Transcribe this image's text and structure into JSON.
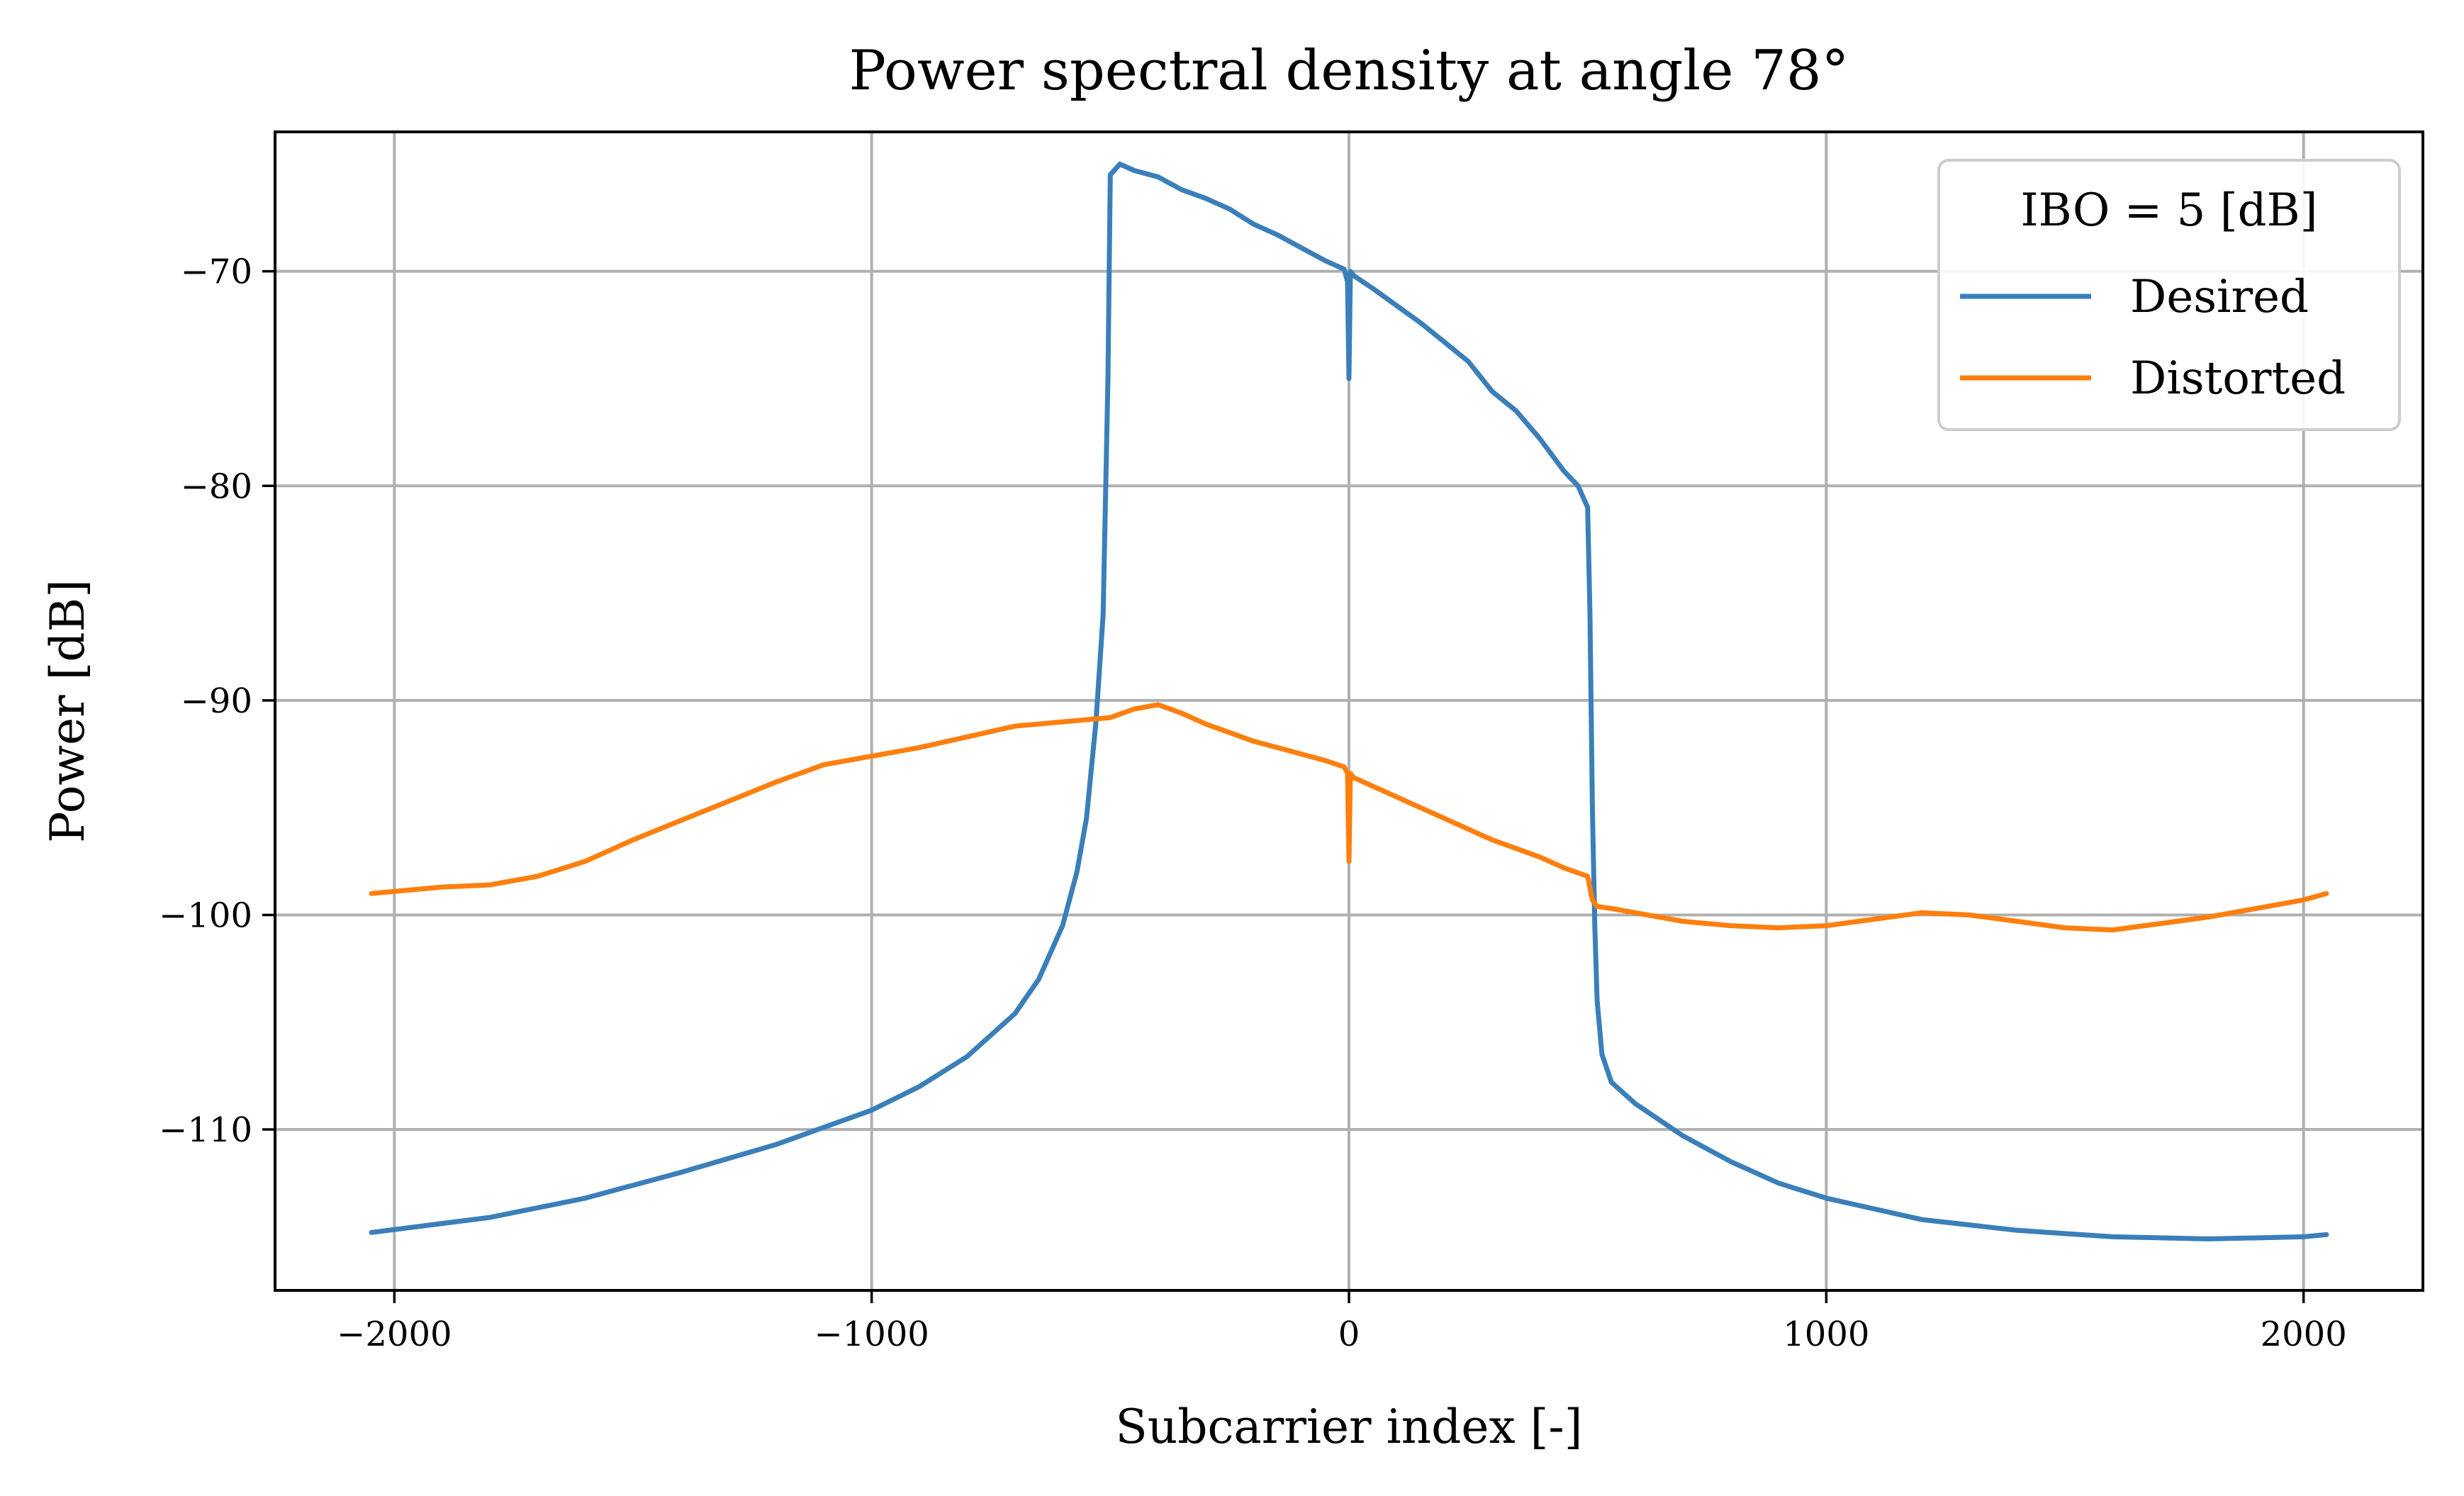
{
  "chart_data": {
    "type": "line",
    "title": "Power spectral density at angle 78°",
    "xlabel": "Subcarrier index [-]",
    "ylabel": "Power [dB]",
    "xlim": [
      -2250,
      2250
    ],
    "ylim": [
      -117.5,
      -63.5
    ],
    "xticks": [
      -2000,
      -1000,
      0,
      1000,
      2000
    ],
    "xtick_labels": [
      "−2000",
      "−1000",
      "0",
      "1000",
      "2000"
    ],
    "yticks": [
      -110,
      -100,
      -90,
      -80,
      -70
    ],
    "ytick_labels": [
      "−110",
      "−100",
      "−90",
      "−80",
      "−70"
    ],
    "grid": true,
    "legend": {
      "title": "IBO = 5 [dB]",
      "placement": "upper right"
    },
    "series": [
      {
        "name": "Desired",
        "color": "#3a7fba",
        "x": [
          -2048,
          -1800,
          -1600,
          -1400,
          -1200,
          -1000,
          -900,
          -800,
          -700,
          -650,
          -600,
          -570,
          -550,
          -530,
          -515,
          -505,
          -500,
          -480,
          -450,
          -400,
          -350,
          -300,
          -250,
          -200,
          -150,
          -100,
          -50,
          -10,
          -3,
          0,
          3,
          10,
          50,
          100,
          150,
          200,
          250,
          300,
          350,
          400,
          450,
          480,
          500,
          505,
          510,
          515,
          520,
          530,
          550,
          600,
          700,
          800,
          900,
          1000,
          1200,
          1400,
          1600,
          1800,
          2000,
          2048
        ],
        "y": [
          -114.8,
          -114.1,
          -113.2,
          -112.0,
          -110.7,
          -109.1,
          -108.0,
          -106.6,
          -104.6,
          -103.0,
          -100.5,
          -98.0,
          -95.5,
          -91.0,
          -86.0,
          -75.0,
          -65.5,
          -65.0,
          -65.3,
          -65.6,
          -66.2,
          -66.6,
          -67.1,
          -67.8,
          -68.3,
          -68.9,
          -69.5,
          -69.9,
          -70.5,
          -75.0,
          -70.0,
          -70.2,
          -70.8,
          -71.6,
          -72.4,
          -73.3,
          -74.2,
          -75.6,
          -76.5,
          -77.8,
          -79.3,
          -80.0,
          -81.0,
          -86.0,
          -95.0,
          -100.5,
          -104.0,
          -106.5,
          -107.8,
          -108.8,
          -110.3,
          -111.5,
          -112.5,
          -113.2,
          -114.2,
          -114.7,
          -115.0,
          -115.1,
          -115.0,
          -114.9
        ]
      },
      {
        "name": "Distorted",
        "color": "#ff7f0e",
        "x": [
          -2048,
          -1900,
          -1800,
          -1700,
          -1600,
          -1500,
          -1400,
          -1300,
          -1200,
          -1100,
          -1000,
          -900,
          -800,
          -700,
          -600,
          -500,
          -450,
          -400,
          -350,
          -300,
          -250,
          -200,
          -150,
          -100,
          -50,
          -10,
          -3,
          0,
          3,
          10,
          50,
          100,
          150,
          200,
          250,
          300,
          350,
          400,
          450,
          500,
          510,
          520,
          550,
          600,
          700,
          800,
          900,
          1000,
          1100,
          1200,
          1300,
          1400,
          1500,
          1600,
          1700,
          1800,
          1900,
          2000,
          2048
        ],
        "y": [
          -99.0,
          -98.7,
          -98.6,
          -98.2,
          -97.5,
          -96.5,
          -95.6,
          -94.7,
          -93.8,
          -93.0,
          -92.6,
          -92.2,
          -91.7,
          -91.2,
          -91.0,
          -90.8,
          -90.4,
          -90.2,
          -90.6,
          -91.1,
          -91.5,
          -91.9,
          -92.2,
          -92.5,
          -92.8,
          -93.1,
          -93.4,
          -97.5,
          -93.4,
          -93.6,
          -94.0,
          -94.5,
          -95.0,
          -95.5,
          -96.0,
          -96.5,
          -96.9,
          -97.3,
          -97.8,
          -98.2,
          -99.3,
          -99.6,
          -99.7,
          -99.9,
          -100.3,
          -100.5,
          -100.6,
          -100.5,
          -100.2,
          -99.9,
          -100.0,
          -100.3,
          -100.6,
          -100.7,
          -100.4,
          -100.1,
          -99.7,
          -99.3,
          -99.0
        ]
      }
    ]
  }
}
